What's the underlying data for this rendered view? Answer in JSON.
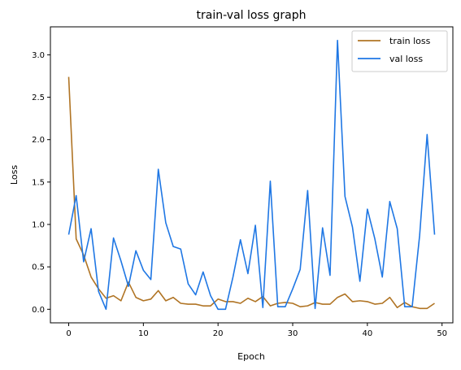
{
  "chart_data": {
    "type": "line",
    "title": "train-val loss graph",
    "xlabel": "Epoch",
    "ylabel": "Loss",
    "xlim": [
      -2.45,
      51.45
    ],
    "ylim": [
      -0.16,
      3.33
    ],
    "xticks": [
      0,
      10,
      20,
      30,
      40,
      50
    ],
    "xtick_labels": [
      "0",
      "10",
      "20",
      "30",
      "40",
      "50"
    ],
    "yticks": [
      0.0,
      0.5,
      1.0,
      1.5,
      2.0,
      2.5,
      3.0
    ],
    "ytick_labels": [
      "0.0",
      "0.5",
      "1.0",
      "1.5",
      "2.0",
      "2.5",
      "3.0"
    ],
    "grid": false,
    "legend_position": "top-right",
    "x": [
      0,
      1,
      2,
      3,
      4,
      5,
      6,
      7,
      8,
      9,
      10,
      11,
      12,
      13,
      14,
      15,
      16,
      17,
      18,
      19,
      20,
      21,
      22,
      23,
      24,
      25,
      26,
      27,
      28,
      29,
      30,
      31,
      32,
      33,
      34,
      35,
      36,
      37,
      38,
      39,
      40,
      41,
      42,
      43,
      44,
      45,
      46,
      47,
      48,
      49
    ],
    "series": [
      {
        "name": "train loss",
        "color": "#b07424",
        "values": [
          2.74,
          0.83,
          0.64,
          0.38,
          0.24,
          0.13,
          0.16,
          0.1,
          0.32,
          0.14,
          0.1,
          0.12,
          0.22,
          0.1,
          0.14,
          0.07,
          0.06,
          0.06,
          0.04,
          0.04,
          0.12,
          0.09,
          0.09,
          0.07,
          0.13,
          0.09,
          0.15,
          0.04,
          0.07,
          0.08,
          0.07,
          0.03,
          0.04,
          0.08,
          0.06,
          0.06,
          0.14,
          0.18,
          0.09,
          0.1,
          0.09,
          0.06,
          0.07,
          0.14,
          0.02,
          0.08,
          0.03,
          0.01,
          0.01,
          0.07
        ]
      },
      {
        "name": "val loss",
        "color": "#1f77e4",
        "values": [
          0.88,
          1.34,
          0.56,
          0.95,
          0.21,
          0.0,
          0.84,
          0.57,
          0.27,
          0.69,
          0.46,
          0.35,
          1.65,
          1.02,
          0.74,
          0.71,
          0.3,
          0.17,
          0.44,
          0.16,
          0.0,
          0.0,
          0.38,
          0.82,
          0.42,
          0.99,
          0.02,
          1.51,
          0.03,
          0.03,
          0.24,
          0.47,
          1.4,
          0.01,
          0.96,
          0.4,
          3.17,
          1.33,
          0.97,
          0.33,
          1.18,
          0.83,
          0.38,
          1.27,
          0.95,
          0.03,
          0.03,
          0.87,
          2.06,
          0.88
        ]
      }
    ]
  }
}
